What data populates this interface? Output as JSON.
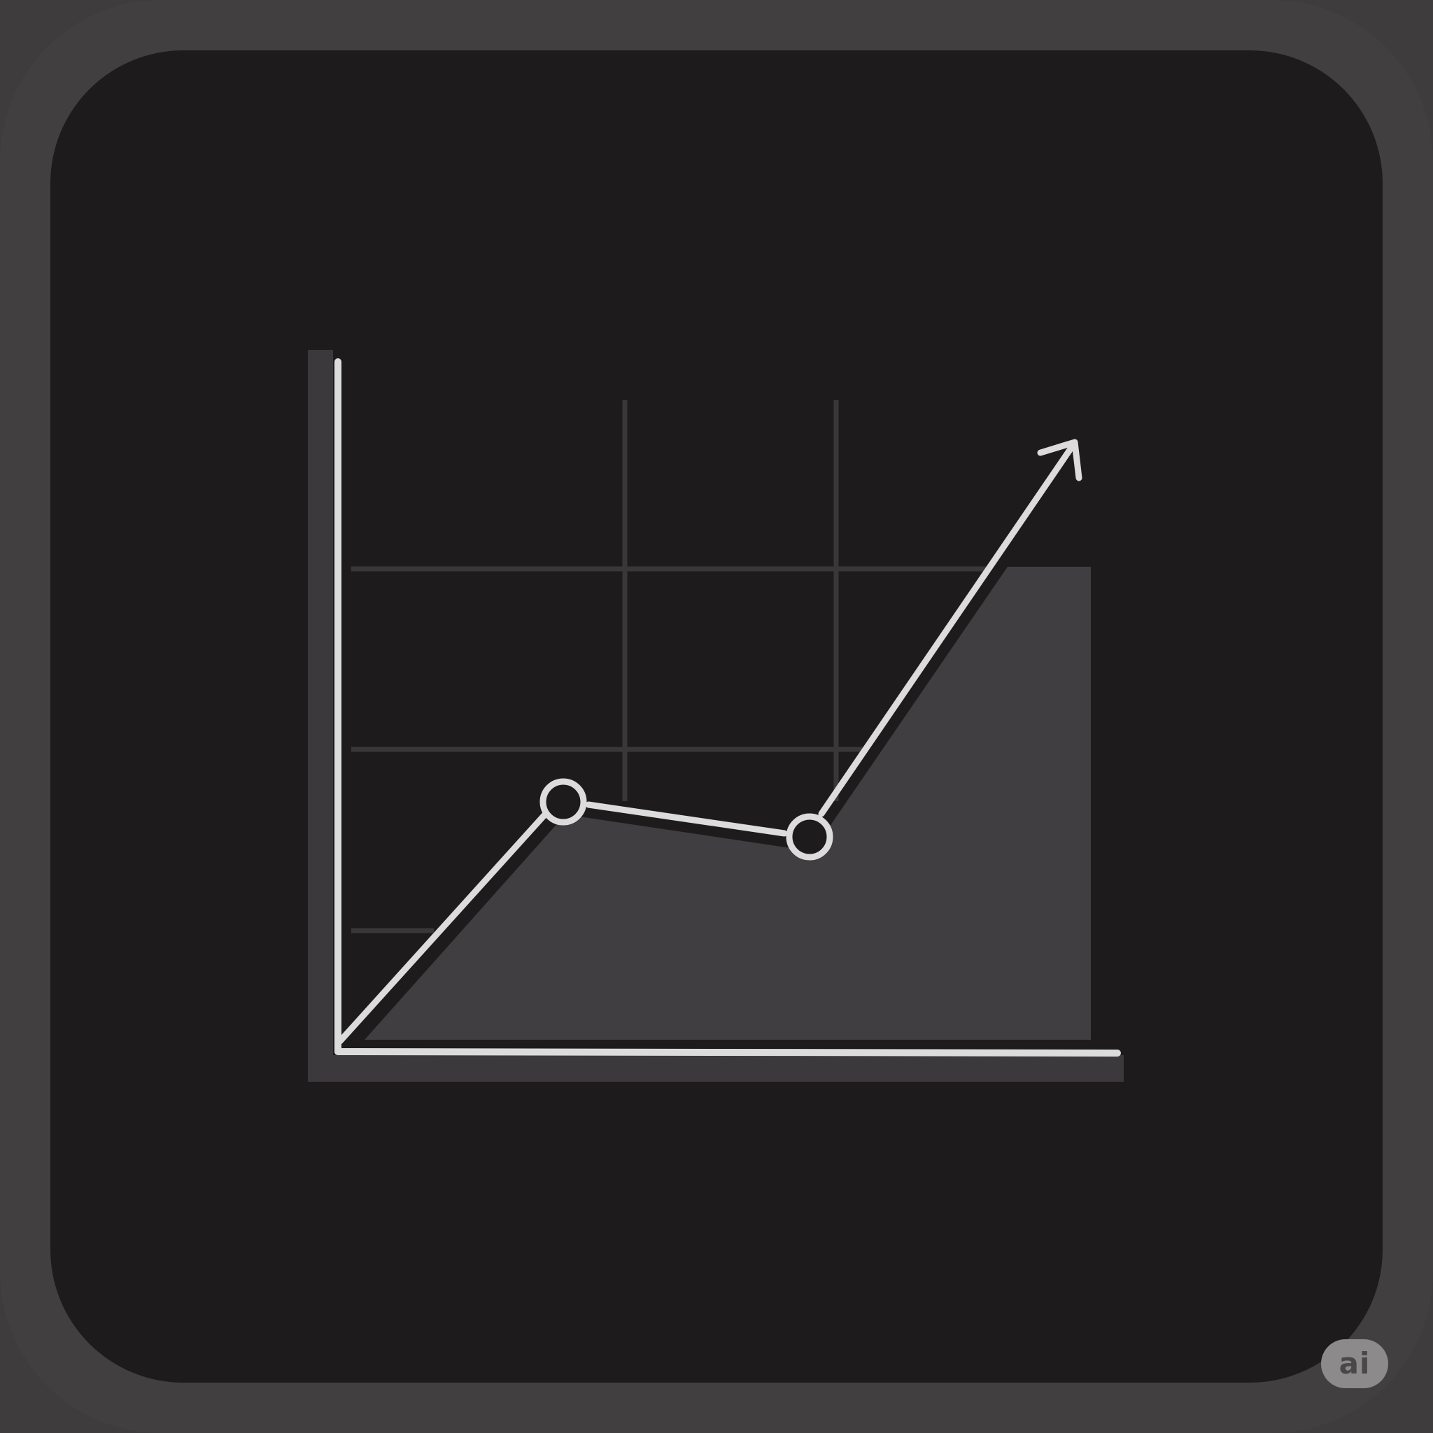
{
  "icon": {
    "name": "chart-trend-up-icon",
    "colors": {
      "outer": "#423f41",
      "inner": "#1e1b1c",
      "grid": "#3a3739",
      "area": "#403e40",
      "axis_block": "#3b393b",
      "line": "#dcdcdc"
    }
  },
  "badge": {
    "text": "ai",
    "color": "#8c8a8b"
  }
}
